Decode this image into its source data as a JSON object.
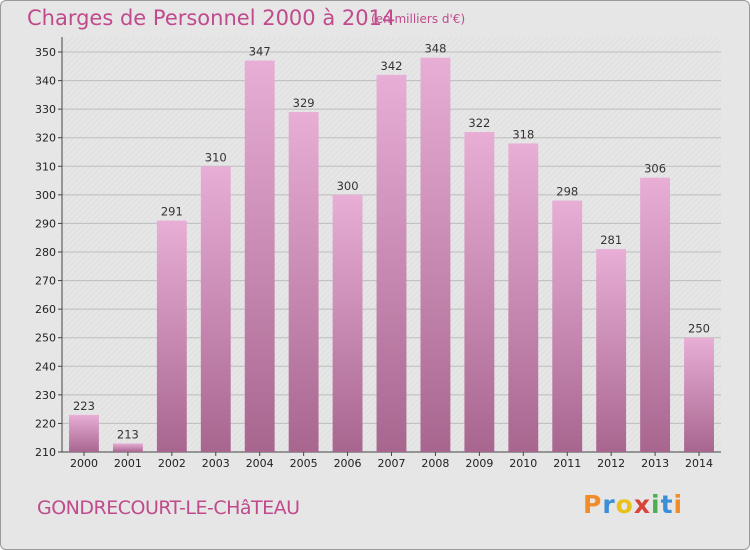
{
  "chart_data": {
    "type": "bar",
    "title": "Charges de Personnel 2000 à 2014",
    "subtitle": "(en milliers d'€)",
    "categories": [
      "2000",
      "2001",
      "2002",
      "2003",
      "2004",
      "2005",
      "2006",
      "2007",
      "2008",
      "2009",
      "2010",
      "2011",
      "2012",
      "2013",
      "2014"
    ],
    "values": [
      223,
      213,
      291,
      310,
      347,
      329,
      300,
      342,
      348,
      322,
      318,
      298,
      281,
      306,
      250
    ],
    "ylim": [
      210,
      350
    ],
    "yticks": [
      210,
      220,
      230,
      240,
      250,
      260,
      270,
      280,
      290,
      300,
      310,
      320,
      330,
      340,
      350
    ],
    "grid": true,
    "legend": "none",
    "colors": {
      "bar_top": "#e8aed6",
      "bar_bottom": "#a8668f",
      "title": "#c04a8c"
    }
  },
  "footer": {
    "commune": "GONDRECOURT-LE-CHâTEAU",
    "logo_letters": [
      "P",
      "r",
      "o",
      "x",
      "i",
      "t",
      "i"
    ],
    "logo_colors": [
      "#f28c28",
      "#3a8fd6",
      "#e8c21a",
      "#d9443a",
      "#4caf50",
      "#3a8fd6",
      "#f28c28"
    ]
  },
  "logo_icon": "proxiti-logo"
}
